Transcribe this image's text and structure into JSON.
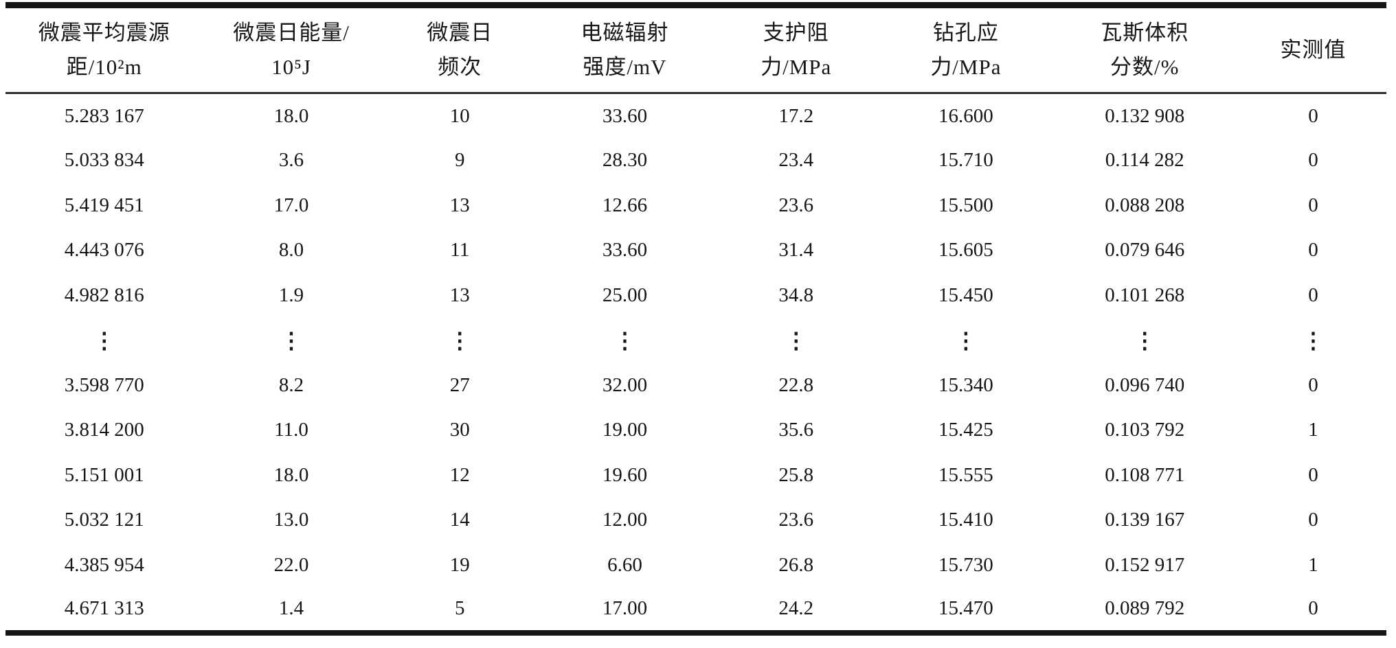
{
  "table": {
    "columns": [
      {
        "line1": "微震平均震源",
        "line2": "距/10²m"
      },
      {
        "line1": "微震日能量/",
        "line2": "10⁵J"
      },
      {
        "line1": "微震日",
        "line2": "频次"
      },
      {
        "line1": "电磁辐射",
        "line2": "强度/mV"
      },
      {
        "line1": "支护阻",
        "line2": "力/MPa"
      },
      {
        "line1": "钻孔应",
        "line2": "力/MPa"
      },
      {
        "line1": "瓦斯体积",
        "line2": "分数/%"
      },
      {
        "line1": "实测值",
        "line2": ""
      }
    ],
    "rows": [
      [
        "5.283 167",
        "18.0",
        "10",
        "33.60",
        "17.2",
        "16.600",
        "0.132 908",
        "0"
      ],
      [
        "5.033 834",
        "3.6",
        "9",
        "28.30",
        "23.4",
        "15.710",
        "0.114 282",
        "0"
      ],
      [
        "5.419 451",
        "17.0",
        "13",
        "12.66",
        "23.6",
        "15.500",
        "0.088 208",
        "0"
      ],
      [
        "4.443 076",
        "8.0",
        "11",
        "33.60",
        "31.4",
        "15.605",
        "0.079 646",
        "0"
      ],
      [
        "4.982 816",
        "1.9",
        "13",
        "25.00",
        "34.8",
        "15.450",
        "0.101 268",
        "0"
      ],
      [
        "⋮",
        "⋮",
        "⋮",
        "⋮",
        "⋮",
        "⋮",
        "⋮",
        "⋮"
      ],
      [
        "3.598 770",
        "8.2",
        "27",
        "32.00",
        "22.8",
        "15.340",
        "0.096 740",
        "0"
      ],
      [
        "3.814 200",
        "11.0",
        "30",
        "19.00",
        "35.6",
        "15.425",
        "0.103 792",
        "1"
      ],
      [
        "5.151 001",
        "18.0",
        "12",
        "19.60",
        "25.8",
        "15.555",
        "0.108 771",
        "0"
      ],
      [
        "5.032 121",
        "13.0",
        "14",
        "12.00",
        "23.6",
        "15.410",
        "0.139 167",
        "0"
      ],
      [
        "4.385 954",
        "22.0",
        "19",
        "6.60",
        "26.8",
        "15.730",
        "0.152 917",
        "1"
      ],
      [
        "4.671 313",
        "1.4",
        "5",
        "17.00",
        "24.2",
        "15.470",
        "0.089 792",
        "0"
      ]
    ],
    "ellipsis_char": "⋮",
    "colors": {
      "text": "#161616",
      "rule": "#151515",
      "background": "#ffffff"
    }
  }
}
